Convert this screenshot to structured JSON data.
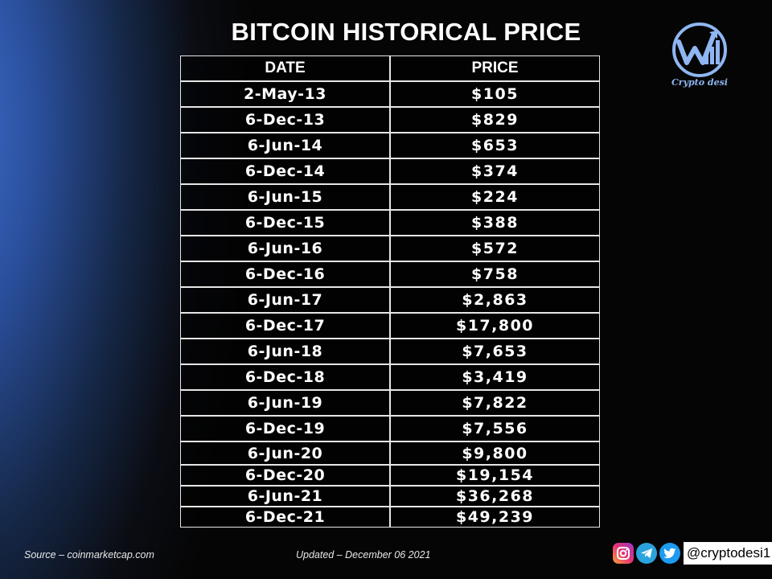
{
  "title": "BITCOIN HISTORICAL PRICE",
  "logo": {
    "text": "Crypto desi",
    "icon": "w-growth-arrow-icon",
    "color": "#8fb6f2"
  },
  "table": {
    "headers": [
      "DATE",
      "PRICE"
    ],
    "rows": [
      {
        "date": "2-May-13",
        "price": "$105"
      },
      {
        "date": "6-Dec-13",
        "price": "$829"
      },
      {
        "date": "6-Jun-14",
        "price": "$653"
      },
      {
        "date": "6-Dec-14",
        "price": "$374"
      },
      {
        "date": "6-Jun-15",
        "price": "$224"
      },
      {
        "date": "6-Dec-15",
        "price": "$388"
      },
      {
        "date": "6-Jun-16",
        "price": "$572"
      },
      {
        "date": "6-Dec-16",
        "price": "$758"
      },
      {
        "date": "6-Jun-17",
        "price": "$2,863"
      },
      {
        "date": "6-Dec-17",
        "price": "$17,800"
      },
      {
        "date": "6-Jun-18",
        "price": "$7,653"
      },
      {
        "date": "6-Dec-18",
        "price": "$3,419"
      },
      {
        "date": "6-Jun-19",
        "price": "$7,822"
      },
      {
        "date": "6-Dec-19",
        "price": "$7,556"
      },
      {
        "date": "6-Jun-20",
        "price": "$9,800"
      },
      {
        "date": "6-Dec-20",
        "price": "$19,154"
      },
      {
        "date": "6-Jun-21",
        "price": "$36,268"
      },
      {
        "date": "6-Dec-21",
        "price": "$49,239"
      }
    ]
  },
  "footer": {
    "source": "Source – coinmarketcap.com",
    "updated": "Updated – December 06 2021",
    "handle": "@cryptodesi1",
    "social_icons": [
      "instagram-icon",
      "telegram-icon",
      "twitter-icon"
    ]
  },
  "chart_data": {
    "type": "table",
    "title": "BITCOIN HISTORICAL PRICE",
    "columns": [
      "DATE",
      "PRICE"
    ],
    "x": [
      "2-May-13",
      "6-Dec-13",
      "6-Jun-14",
      "6-Dec-14",
      "6-Jun-15",
      "6-Dec-15",
      "6-Jun-16",
      "6-Dec-16",
      "6-Jun-17",
      "6-Dec-17",
      "6-Jun-18",
      "6-Dec-18",
      "6-Jun-19",
      "6-Dec-19",
      "6-Jun-20",
      "6-Dec-20",
      "6-Jun-21",
      "6-Dec-21"
    ],
    "values": [
      105,
      829,
      653,
      374,
      224,
      388,
      572,
      758,
      2863,
      17800,
      7653,
      3419,
      7822,
      7556,
      9800,
      19154,
      36268,
      49239
    ]
  }
}
